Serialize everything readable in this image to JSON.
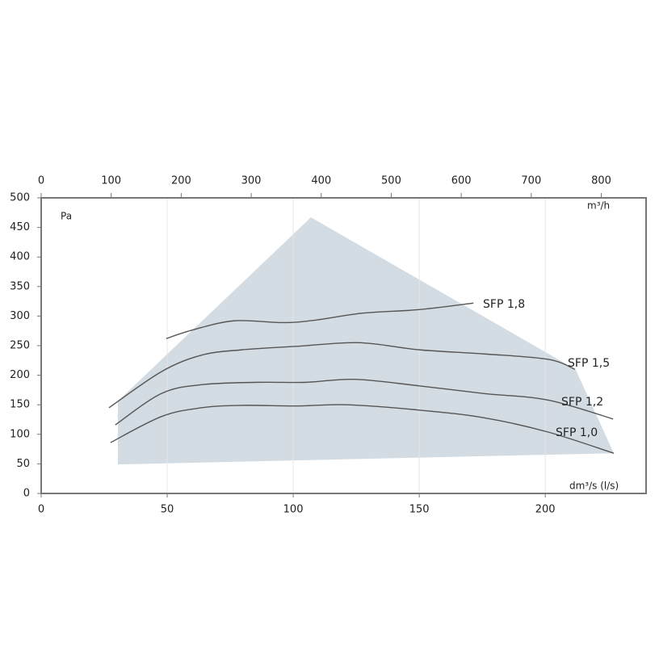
{
  "chart_data": {
    "type": "line",
    "y_unit_label": "Pa",
    "x_label": "dm³/s (l/s)",
    "x2_label": "m³/h",
    "xlim": [
      0,
      240
    ],
    "xticks": [
      0,
      50,
      100,
      150,
      200
    ],
    "x2lim": [
      0,
      864
    ],
    "x2ticks": [
      0,
      100,
      200,
      300,
      400,
      500,
      600,
      700,
      800
    ],
    "ylim": [
      0,
      500
    ],
    "yticks": [
      0,
      50,
      100,
      150,
      200,
      250,
      300,
      350,
      400,
      450,
      500
    ],
    "grid": true,
    "region": {
      "color": "#d3dce3",
      "x": [
        30.4,
        30.4,
        107,
        212,
        227.2
      ],
      "values": [
        49,
        156,
        467,
        210,
        68
      ]
    },
    "series": [
      {
        "name": "SFP 1,8",
        "color": "#555555",
        "x": [
          49.6,
          60.5,
          76.5,
          96,
          108.5,
          127.7,
          150,
          171.5
        ],
        "values": [
          262,
          277,
          292,
          289,
          293,
          305,
          311,
          322
        ]
      },
      {
        "name": "SFP 1,5",
        "color": "#555555",
        "x": [
          26.9,
          47.7,
          63.7,
          79.7,
          102,
          126,
          150,
          175.7,
          201,
          211.8
        ],
        "values": [
          145,
          206,
          234,
          243,
          249,
          255,
          243,
          236,
          227,
          210
        ]
      },
      {
        "name": "SFP 1,2",
        "color": "#555555",
        "x": [
          29.4,
          47.7,
          63.7,
          86,
          105,
          124.5,
          150,
          175.7,
          201,
          226.9
        ],
        "values": [
          116,
          169,
          184,
          188,
          188,
          193,
          182,
          169,
          158,
          126
        ]
      },
      {
        "name": "SFP 1,0",
        "color": "#555555",
        "x": [
          27.5,
          47.7,
          63.7,
          79.7,
          102,
          121,
          150,
          175.7,
          201,
          227.2
        ],
        "values": [
          86,
          130,
          145,
          149,
          148,
          150,
          141,
          128,
          104,
          68
        ]
      }
    ]
  }
}
